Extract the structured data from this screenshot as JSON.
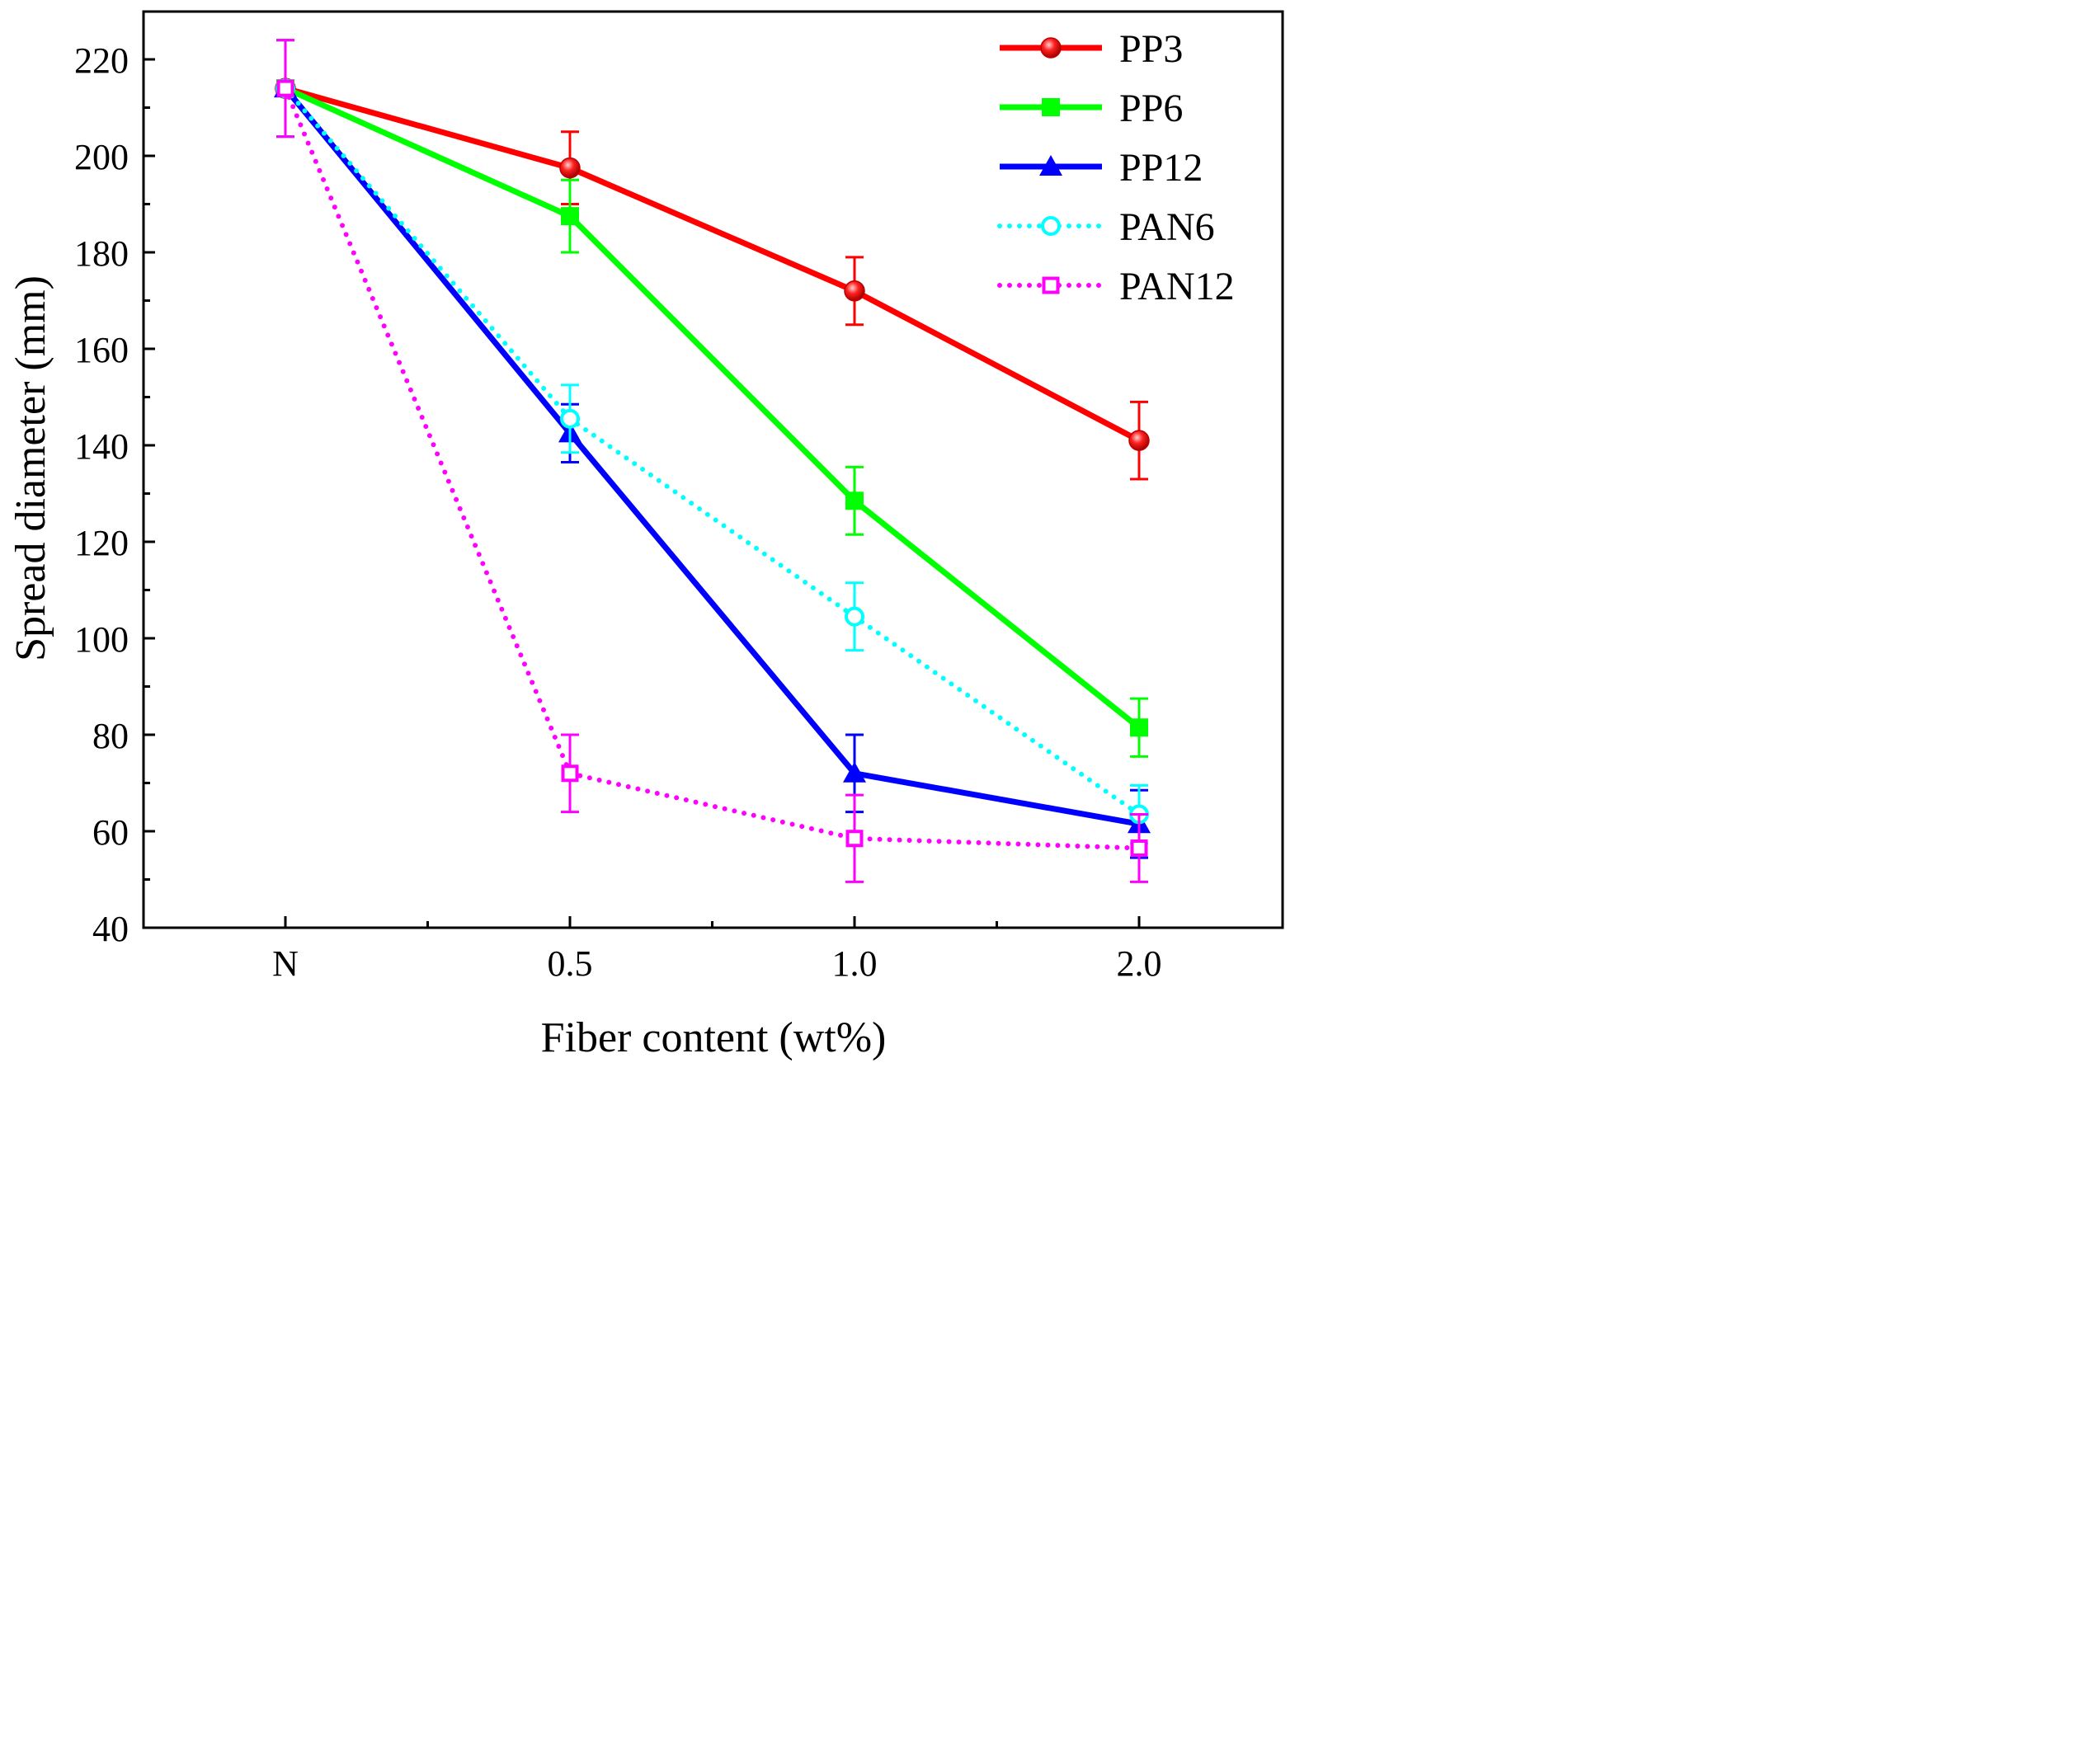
{
  "chart_data": {
    "type": "line",
    "title": "",
    "xlabel": "Fiber content (wt%)",
    "ylabel": "Spread diameter (mm)",
    "categories": [
      "N",
      "0.5",
      "1.0",
      "2.0"
    ],
    "ylim": [
      40,
      220
    ],
    "yticks": [
      40,
      60,
      80,
      100,
      120,
      140,
      160,
      180,
      200,
      220
    ],
    "grid": false,
    "legend_position": "top-right",
    "series": [
      {
        "name": "PP3",
        "color": "#ff0000",
        "line": "solid",
        "marker": "sphere",
        "values": [
          214,
          197.5,
          172,
          141
        ],
        "errors": [
          10,
          7.5,
          7,
          8
        ]
      },
      {
        "name": "PP6",
        "color": "#00ff00",
        "line": "solid",
        "marker": "square-filled",
        "values": [
          214,
          187.5,
          128.5,
          81.5
        ],
        "errors": [
          10,
          7.5,
          7,
          6
        ]
      },
      {
        "name": "PP12",
        "color": "#0000ff",
        "line": "solid",
        "marker": "triangle-filled",
        "values": [
          214,
          142.5,
          72,
          61.5
        ],
        "errors": [
          10,
          6,
          8,
          7
        ]
      },
      {
        "name": "PAN6",
        "color": "#00ffff",
        "line": "dotted",
        "marker": "circle-open",
        "values": [
          214,
          145.5,
          104.5,
          63.5
        ],
        "errors": [
          10,
          7,
          7,
          6
        ]
      },
      {
        "name": "PAN12",
        "color": "#ff00ff",
        "line": "dotted",
        "marker": "square-open",
        "values": [
          214,
          72,
          58.5,
          56.5
        ],
        "errors": [
          10,
          8,
          9,
          7
        ]
      }
    ]
  }
}
